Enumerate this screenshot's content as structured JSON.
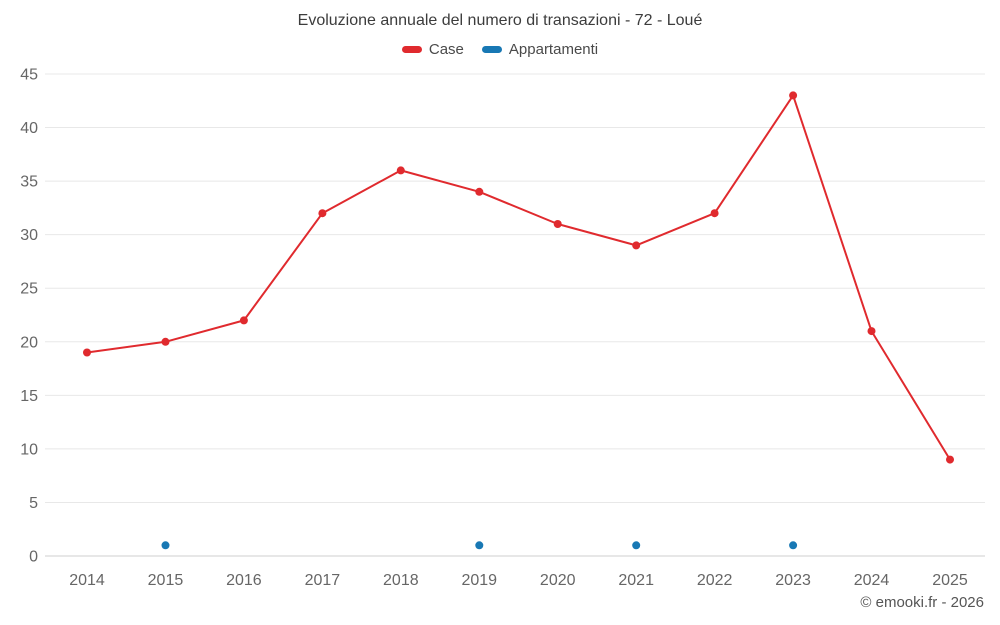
{
  "title": "Evoluzione annuale del numero di transazioni - 72 - Loué",
  "footer": "© emooki.fr - 2026",
  "chart_data": {
    "type": "line",
    "title": "Evoluzione annuale del numero di transazioni - 72 - Loué",
    "xlabel": "",
    "ylabel": "",
    "categories": [
      "2014",
      "2015",
      "2016",
      "2017",
      "2018",
      "2019",
      "2020",
      "2021",
      "2022",
      "2023",
      "2024",
      "2025"
    ],
    "series": [
      {
        "name": "Case",
        "color": "#e02a2e",
        "values": [
          19,
          20,
          22,
          32,
          36,
          34,
          31,
          29,
          32,
          43,
          21,
          9
        ]
      },
      {
        "name": "Appartamenti",
        "color": "#1878b4",
        "values": [
          null,
          1,
          null,
          null,
          null,
          1,
          null,
          1,
          null,
          1,
          null,
          null
        ]
      }
    ],
    "ylim": [
      0,
      45
    ],
    "ytick_step": 5,
    "grid": true,
    "legend_position": "top",
    "colors": {
      "grid": "#e8e8e8",
      "axis_line": "#cfcfcf",
      "tick_text": "#666666"
    }
  }
}
